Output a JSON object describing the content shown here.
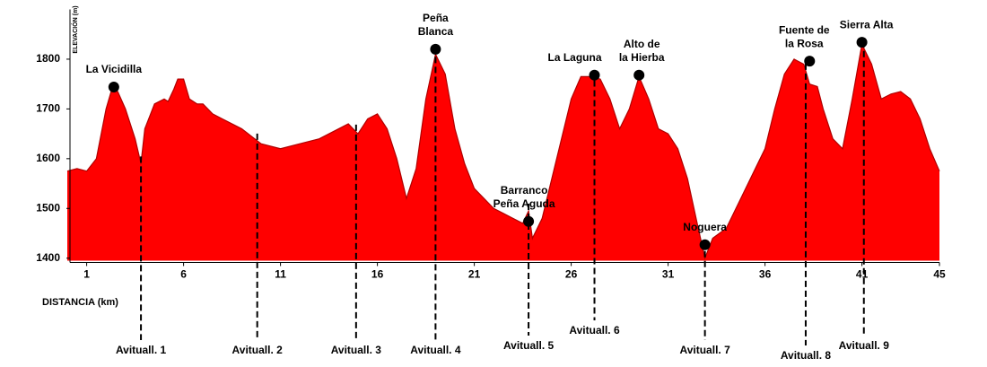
{
  "chart_data": {
    "type": "area",
    "x_label": "DISTANCIA (km)",
    "y_label": "ELEVACIÓN (m)",
    "color": "#ff0000",
    "x": [
      0,
      0.5,
      1,
      1.5,
      2,
      2.3,
      2.6,
      3,
      3.5,
      3.8,
      4,
      4.5,
      5,
      5.2,
      5.5,
      5.7,
      6,
      6.3,
      6.7,
      7,
      7.5,
      8,
      9,
      10,
      11,
      12,
      13,
      14,
      14.5,
      15,
      15.5,
      16,
      16.5,
      17,
      17.5,
      18,
      18.5,
      19,
      19.5,
      20,
      20.5,
      21,
      22,
      22.5,
      23,
      23.5,
      23.8,
      24,
      24.5,
      25,
      25.5,
      26,
      26.5,
      27,
      27.5,
      28,
      28.5,
      29,
      29.5,
      30,
      30.5,
      31,
      31.5,
      32,
      32.5,
      32.9,
      33.3,
      34,
      35,
      35.5,
      36,
      36.5,
      37,
      37.5,
      38,
      38.3,
      38.7,
      39,
      39.5,
      40,
      40.5,
      41,
      41.5,
      42,
      42.5,
      43,
      43.5,
      44,
      44.5,
      45
    ],
    "values": [
      1575,
      1580,
      1575,
      1600,
      1700,
      1740,
      1735,
      1700,
      1640,
      1590,
      1660,
      1710,
      1720,
      1715,
      1740,
      1760,
      1760,
      1720,
      1710,
      1710,
      1690,
      1680,
      1660,
      1630,
      1620,
      1630,
      1640,
      1660,
      1670,
      1650,
      1680,
      1690,
      1660,
      1600,
      1520,
      1580,
      1720,
      1810,
      1770,
      1660,
      1590,
      1540,
      1500,
      1490,
      1480,
      1470,
      1495,
      1440,
      1480,
      1560,
      1640,
      1720,
      1765,
      1765,
      1760,
      1720,
      1660,
      1700,
      1765,
      1720,
      1660,
      1650,
      1620,
      1560,
      1470,
      1400,
      1440,
      1460,
      1540,
      1580,
      1620,
      1700,
      1770,
      1800,
      1790,
      1750,
      1745,
      1700,
      1640,
      1620,
      1720,
      1830,
      1790,
      1720,
      1730,
      1735,
      1720,
      1680,
      1620,
      1575
    ],
    "xlim": [
      0,
      45
    ],
    "ylim": [
      1395,
      1900
    ],
    "xticks": [
      1,
      6,
      11,
      16,
      21,
      26,
      31,
      36,
      41,
      45
    ],
    "yticks": [
      1400,
      1500,
      1600,
      1700,
      1800
    ],
    "peaks": [
      {
        "label": [
          "La Vicidilla"
        ],
        "x": 2.4,
        "y": 1744
      },
      {
        "label": [
          "Peña",
          "Blanca"
        ],
        "x": 19.0,
        "y": 1820
      },
      {
        "label": [
          "Barranco",
          "Peña Aguda"
        ],
        "x": 23.8,
        "y": 1474
      },
      {
        "label": [
          "La Laguna"
        ],
        "x": 27.2,
        "y": 1768
      },
      {
        "label": [
          "Alto de",
          "la Hierba"
        ],
        "x": 29.5,
        "y": 1768
      },
      {
        "label": [
          "Noguera"
        ],
        "x": 32.9,
        "y": 1427
      },
      {
        "label": [
          "Fuente de",
          "la Rosa"
        ],
        "x": 38.3,
        "y": 1796
      },
      {
        "label": [
          "Sierra Alta"
        ],
        "x": 41.0,
        "y": 1834
      }
    ],
    "stations": [
      {
        "label": "Avituall. 1",
        "x": 3.8
      },
      {
        "label": "Avituall. 2",
        "x": 9.8
      },
      {
        "label": "Avituall. 3",
        "x": 14.9
      },
      {
        "label": "Avituall. 4",
        "x": 19.0
      },
      {
        "label": "Avituall. 5",
        "x": 23.8
      },
      {
        "label": "Avituall. 6",
        "x": 27.2
      },
      {
        "label": "Avituall. 7",
        "x": 32.9
      },
      {
        "label": "Avituall. 8",
        "x": 38.1
      },
      {
        "label": "Avituall. 9",
        "x": 41.1
      }
    ]
  }
}
